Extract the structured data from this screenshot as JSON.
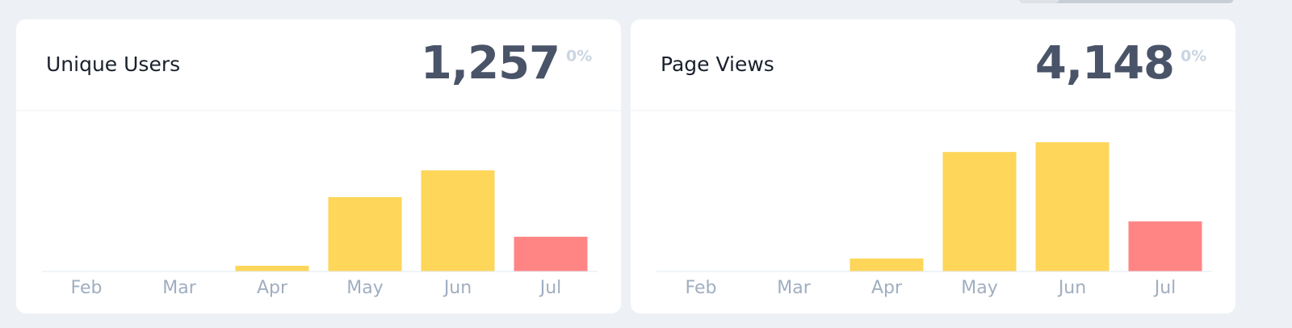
{
  "chart_data": [
    {
      "type": "bar",
      "title": "Unique Users",
      "total": "1,257",
      "change": "0%",
      "categories": [
        "Feb",
        "Mar",
        "Apr",
        "May",
        "Jun",
        "Jul"
      ],
      "values": [
        0,
        0,
        33,
        433,
        589,
        202
      ],
      "colors": [
        "#fdd65a",
        "#fdd65a",
        "#fdd65a",
        "#fdd65a",
        "#fdd65a",
        "#ff8585"
      ],
      "ylim": [
        0,
        875
      ]
    },
    {
      "type": "bar",
      "title": "Page Views",
      "total": "4,148",
      "change": "0%",
      "categories": [
        "Feb",
        "Mar",
        "Apr",
        "May",
        "Jun",
        "Jul"
      ],
      "values": [
        0,
        0,
        172,
        1590,
        1720,
        666
      ],
      "colors": [
        "#fdd65a",
        "#fdd65a",
        "#fdd65a",
        "#fdd65a",
        "#fdd65a",
        "#ff8585"
      ],
      "ylim": [
        0,
        2000
      ]
    }
  ]
}
